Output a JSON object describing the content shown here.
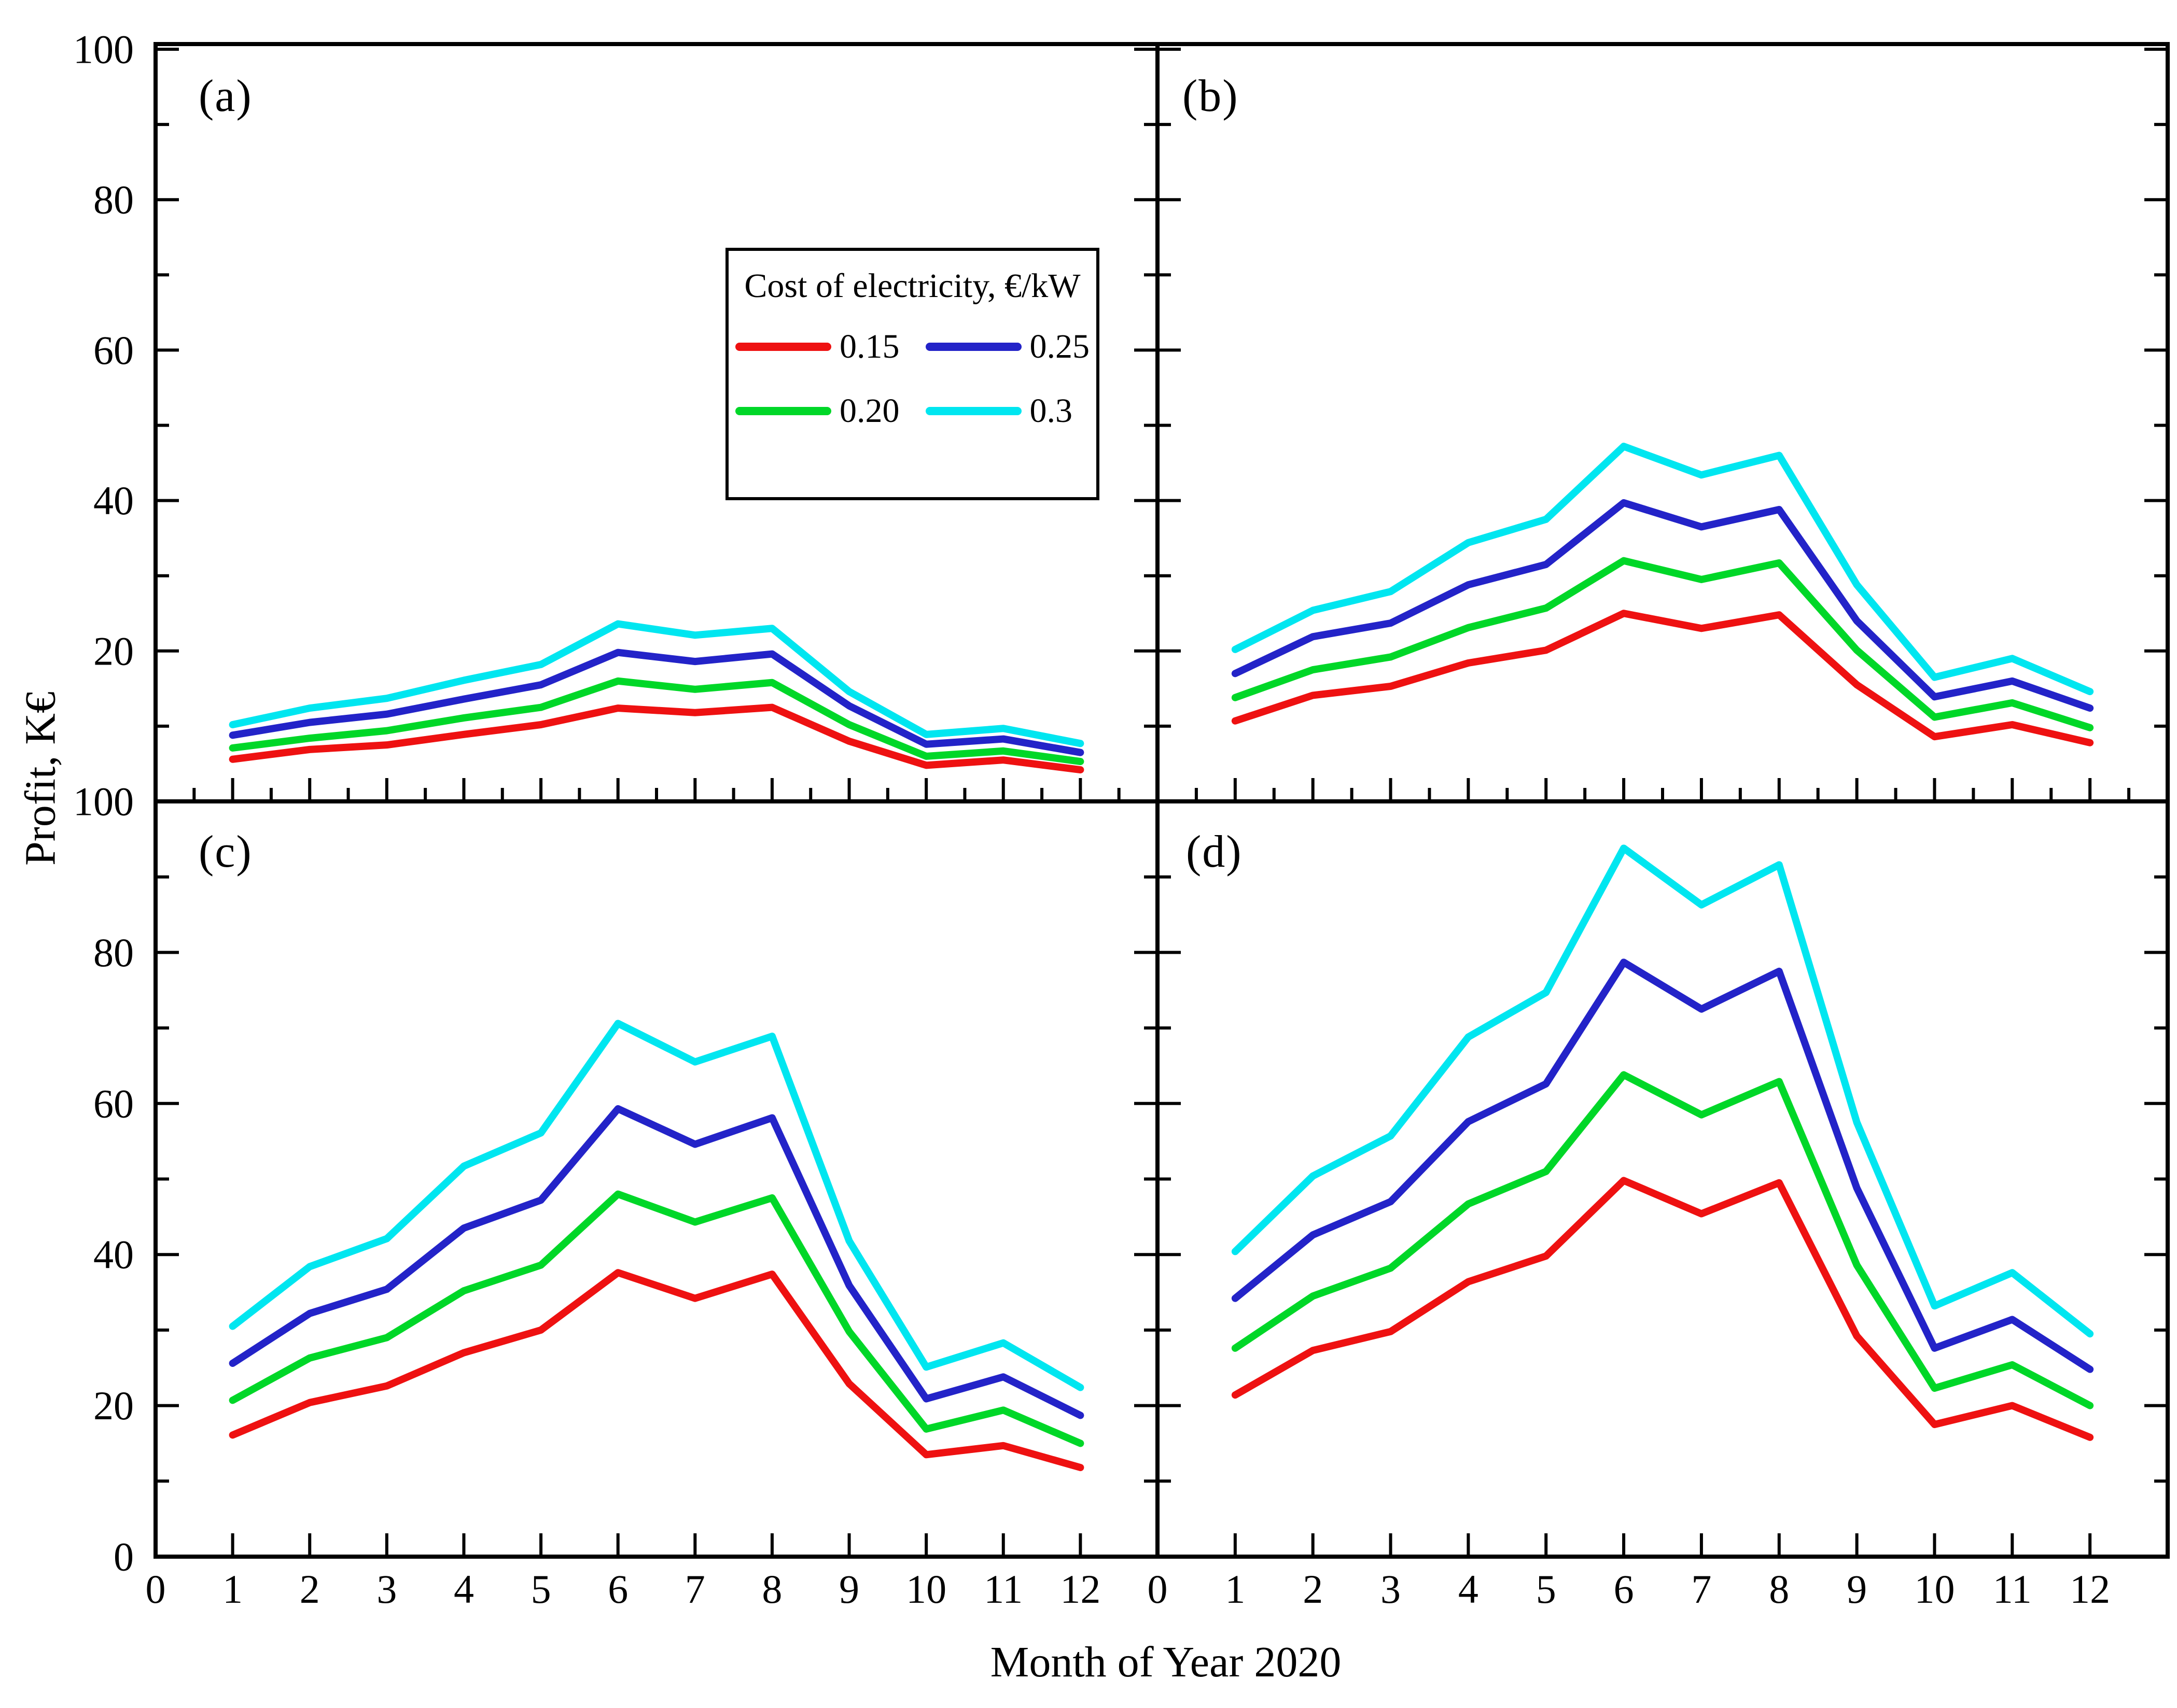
{
  "chart_data": {
    "type": "line",
    "title": "",
    "xlabel": "Month of Year 2020",
    "ylabel": "Profit, K€",
    "x": [
      1,
      2,
      3,
      4,
      5,
      6,
      7,
      8,
      9,
      10,
      11,
      12
    ],
    "xlim": [
      0,
      13
    ],
    "ylim": [
      0,
      100
    ],
    "x_tick_labels": [
      "0",
      "1",
      "2",
      "3",
      "4",
      "5",
      "6",
      "7",
      "8",
      "9",
      "10",
      "11",
      "12"
    ],
    "y_tick_labels_top_row": [
      "20",
      "40",
      "60",
      "80",
      "100"
    ],
    "y_tick_labels_bottom_row": [
      "0",
      "20",
      "40",
      "60",
      "80",
      "100"
    ],
    "y_major_step": 20,
    "y_minor_step": 10,
    "grid": "off",
    "legend": {
      "title": "Cost of electricity, €/kW",
      "location": "inside panel (a), upper right",
      "entries": [
        {
          "label": "0.15",
          "color": "#ee1111"
        },
        {
          "label": "0.20",
          "color": "#00d728"
        },
        {
          "label": "0.25",
          "color": "#2323c8"
        },
        {
          "label": "0.3",
          "color": "#00e6f0"
        }
      ]
    },
    "panels": [
      {
        "label": "(a)",
        "series": [
          {
            "name": "0.15",
            "color": "#ee1111",
            "values": [
              5.6,
              6.9,
              7.5,
              8.9,
              10.2,
              12.4,
              11.8,
              12.5,
              8.0,
              4.8,
              5.5,
              4.2
            ]
          },
          {
            "name": "0.20",
            "color": "#00d728",
            "values": [
              7.1,
              8.4,
              9.4,
              11.1,
              12.5,
              16.0,
              14.9,
              15.8,
              10.2,
              6.0,
              6.7,
              5.3
            ]
          },
          {
            "name": "0.25",
            "color": "#2323c8",
            "values": [
              8.8,
              10.5,
              11.6,
              13.6,
              15.5,
              19.8,
              18.6,
              19.6,
              12.7,
              7.6,
              8.3,
              6.5
            ]
          },
          {
            "name": "0.3",
            "color": "#00e6f0",
            "values": [
              10.2,
              12.4,
              13.7,
              16.1,
              18.2,
              23.6,
              22.1,
              23.0,
              14.6,
              8.9,
              9.7,
              7.7
            ]
          }
        ]
      },
      {
        "label": "(b)",
        "series": [
          {
            "name": "0.15",
            "color": "#ee1111",
            "values": [
              10.7,
              14.1,
              15.3,
              18.4,
              20.1,
              25.0,
              23.0,
              24.8,
              15.5,
              8.6,
              10.2,
              7.8
            ]
          },
          {
            "name": "0.20",
            "color": "#00d728",
            "values": [
              13.8,
              17.5,
              19.2,
              23.1,
              25.7,
              32.0,
              29.5,
              31.7,
              20.1,
              11.2,
              13.1,
              9.8
            ]
          },
          {
            "name": "0.25",
            "color": "#2323c8",
            "values": [
              17.0,
              21.9,
              23.7,
              28.8,
              31.5,
              39.7,
              36.5,
              38.8,
              24.0,
              13.9,
              16.0,
              12.4
            ]
          },
          {
            "name": "0.3",
            "color": "#00e6f0",
            "values": [
              20.2,
              25.4,
              27.9,
              34.4,
              37.5,
              47.2,
              43.4,
              46.0,
              28.8,
              16.5,
              19.0,
              14.6
            ]
          }
        ]
      },
      {
        "label": "(c)",
        "series": [
          {
            "name": "0.15",
            "color": "#ee1111",
            "values": [
              16.1,
              20.4,
              22.6,
              27.0,
              30.0,
              37.6,
              34.2,
              37.4,
              22.9,
              13.5,
              14.7,
              11.8
            ]
          },
          {
            "name": "0.20",
            "color": "#00d728",
            "values": [
              20.7,
              26.3,
              29.0,
              35.2,
              38.6,
              48.0,
              44.3,
              47.5,
              29.8,
              16.9,
              19.4,
              15.0
            ]
          },
          {
            "name": "0.25",
            "color": "#2323c8",
            "values": [
              25.6,
              32.2,
              35.4,
              43.5,
              47.2,
              59.3,
              54.6,
              58.1,
              35.9,
              20.9,
              23.8,
              18.7
            ]
          },
          {
            "name": "0.3",
            "color": "#00e6f0",
            "values": [
              30.5,
              38.4,
              42.1,
              51.7,
              56.1,
              70.6,
              65.5,
              68.9,
              41.8,
              25.1,
              28.3,
              22.4
            ]
          }
        ]
      },
      {
        "label": "(d)",
        "series": [
          {
            "name": "0.15",
            "color": "#ee1111",
            "values": [
              21.4,
              27.3,
              29.8,
              36.4,
              39.8,
              49.8,
              45.4,
              49.5,
              29.2,
              17.5,
              20.0,
              15.8
            ]
          },
          {
            "name": "0.20",
            "color": "#00d728",
            "values": [
              27.6,
              34.5,
              38.2,
              46.7,
              51.0,
              63.8,
              58.5,
              62.9,
              38.6,
              22.3,
              25.4,
              20.0
            ]
          },
          {
            "name": "0.25",
            "color": "#2323c8",
            "values": [
              34.2,
              42.6,
              47.0,
              57.6,
              62.6,
              78.7,
              72.5,
              77.5,
              48.8,
              27.6,
              31.4,
              24.8
            ]
          },
          {
            "name": "0.3",
            "color": "#00e6f0",
            "values": [
              40.4,
              50.4,
              55.7,
              68.8,
              74.7,
              93.8,
              86.3,
              91.6,
              57.5,
              33.2,
              37.6,
              29.5
            ]
          }
        ]
      }
    ]
  }
}
